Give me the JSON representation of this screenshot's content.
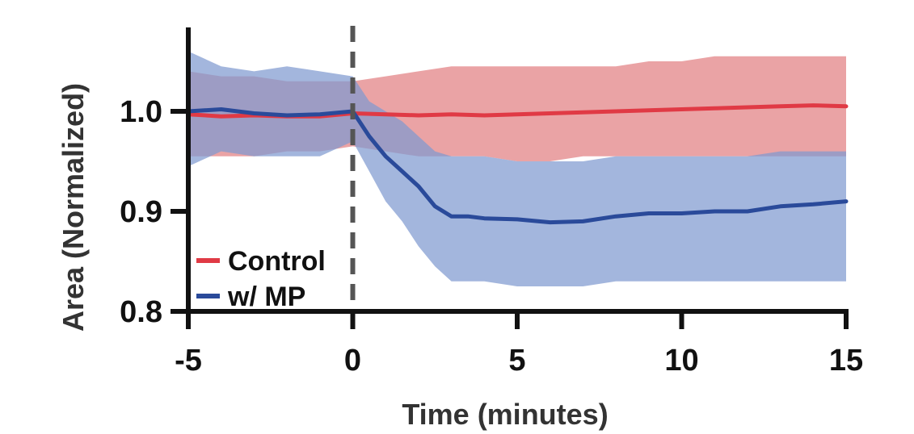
{
  "chart_data": {
    "type": "line",
    "title": "",
    "xlabel": "Time (minutes)",
    "ylabel": "Area (Normalized)",
    "xlim": [
      -5,
      15
    ],
    "ylim": [
      0.8,
      1.0
    ],
    "x_ticks": [
      "-5",
      "0",
      "5",
      "10",
      "15"
    ],
    "y_ticks": [
      "0.8",
      "0.9",
      "1.0"
    ],
    "legend_position": "bottom-left",
    "annotations": [
      {
        "type": "vertical-dashed-line",
        "x": 0,
        "color": "#555555"
      }
    ],
    "grid": false,
    "series": [
      {
        "name": "Control",
        "color": "#e03a45",
        "band_color": "#e27f82",
        "x": [
          -5,
          -4,
          -3,
          -2,
          -1,
          0,
          1,
          2,
          3,
          4,
          5,
          6,
          7,
          8,
          9,
          10,
          11,
          12,
          13,
          14,
          15
        ],
        "values": [
          0.997,
          0.995,
          0.996,
          0.995,
          0.995,
          0.998,
          0.997,
          0.996,
          0.997,
          0.996,
          0.997,
          0.998,
          0.999,
          1.0,
          1.001,
          1.002,
          1.003,
          1.004,
          1.005,
          1.006,
          1.005
        ],
        "upper": [
          1.04,
          1.035,
          1.035,
          1.03,
          1.03,
          1.03,
          1.035,
          1.04,
          1.045,
          1.045,
          1.045,
          1.045,
          1.045,
          1.045,
          1.05,
          1.05,
          1.055,
          1.055,
          1.055,
          1.055,
          1.055
        ],
        "lower": [
          0.955,
          0.955,
          0.955,
          0.96,
          0.96,
          0.965,
          0.96,
          0.955,
          0.955,
          0.955,
          0.95,
          0.95,
          0.955,
          0.955,
          0.955,
          0.955,
          0.955,
          0.955,
          0.955,
          0.955,
          0.955
        ]
      },
      {
        "name": "w/ MP",
        "color": "#2a4a9a",
        "band_color": "#7f9ad0",
        "x": [
          -5,
          -4,
          -3,
          -2,
          -1,
          0,
          0.5,
          1,
          1.5,
          2,
          2.5,
          3,
          3.5,
          4,
          5,
          6,
          7,
          8,
          9,
          10,
          11,
          12,
          13,
          14,
          15
        ],
        "values": [
          1.0,
          1.002,
          0.998,
          0.996,
          0.997,
          1.0,
          0.975,
          0.955,
          0.94,
          0.925,
          0.905,
          0.895,
          0.895,
          0.893,
          0.892,
          0.889,
          0.89,
          0.895,
          0.898,
          0.898,
          0.9,
          0.9,
          0.905,
          0.907,
          0.91
        ],
        "upper": [
          1.06,
          1.045,
          1.04,
          1.045,
          1.04,
          1.035,
          1.01,
          1.0,
          0.99,
          0.975,
          0.96,
          0.955,
          0.955,
          0.955,
          0.95,
          0.95,
          0.95,
          0.955,
          0.955,
          0.955,
          0.955,
          0.955,
          0.96,
          0.96,
          0.96
        ],
        "lower": [
          0.945,
          0.96,
          0.955,
          0.955,
          0.955,
          0.97,
          0.94,
          0.91,
          0.89,
          0.865,
          0.845,
          0.83,
          0.83,
          0.83,
          0.825,
          0.825,
          0.825,
          0.83,
          0.83,
          0.83,
          0.83,
          0.83,
          0.83,
          0.83,
          0.83
        ]
      }
    ]
  }
}
